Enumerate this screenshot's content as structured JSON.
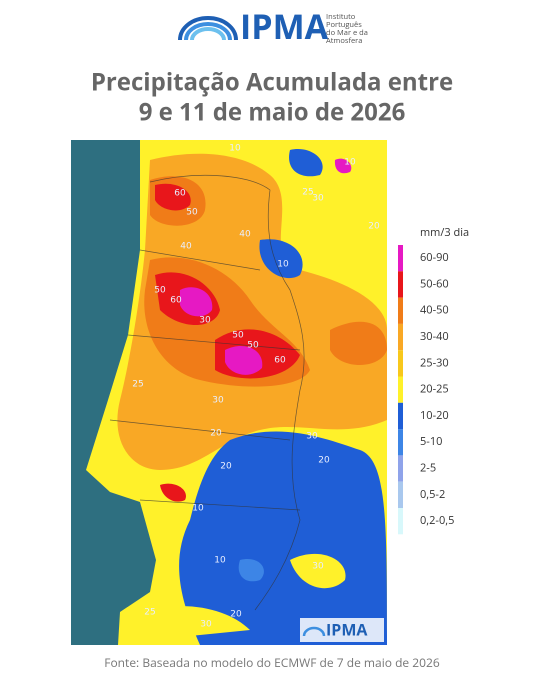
{
  "header": {
    "logo": "IPMA",
    "institute": [
      "Instituto",
      "Português",
      "do Mar e da",
      "Atmosfera"
    ]
  },
  "title": [
    "Precipitação Acumulada entre",
    "9 e 11 de maio de 2026"
  ],
  "legend": {
    "title": "mm/3 dia",
    "items": [
      {
        "label": "60-90",
        "color": "#e619c3"
      },
      {
        "label": "50-60",
        "color": "#e8161b"
      },
      {
        "label": "40-50",
        "color": "#f07c18"
      },
      {
        "label": "30-40",
        "color": "#f9a825"
      },
      {
        "label": "25-30",
        "color": "#f8c81c"
      },
      {
        "label": "20-25",
        "color": "#fff12a"
      },
      {
        "label": "10-20",
        "color": "#1f5ed6"
      },
      {
        "label": "5-10",
        "color": "#3d85e6"
      },
      {
        "label": "2-5",
        "color": "#8fa3ea"
      },
      {
        "label": "0,5-2",
        "color": "#a9c8ee"
      },
      {
        "label": "0,2-0,5",
        "color": "#d8f8fb"
      }
    ]
  },
  "map": {
    "logo": "IPMA",
    "contour_labels": [
      "10",
      "25",
      "10",
      "60",
      "50",
      "30",
      "40",
      "10",
      "40",
      "20",
      "60",
      "50",
      "30",
      "50",
      "50",
      "60",
      "25",
      "30",
      "20",
      "20",
      "20",
      "30",
      "10",
      "10",
      "30",
      "25",
      "30",
      "20"
    ]
  },
  "footer": "Fonte: Baseada no modelo do ECMWF de 7 de maio de 2026"
}
